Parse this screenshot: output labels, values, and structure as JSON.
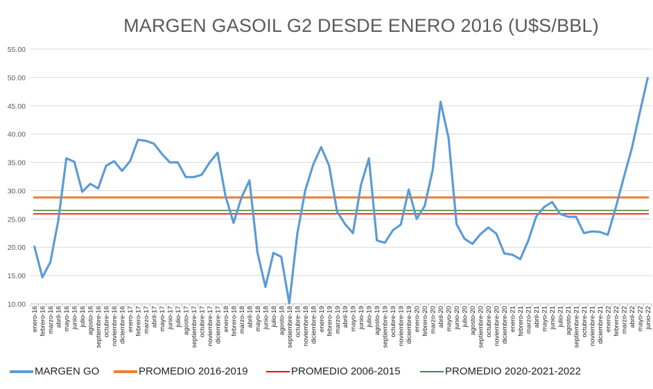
{
  "chart_data": {
    "type": "line",
    "title": "MARGEN GASOIL G2 DESDE ENERO 2016 (U$S/BBL)",
    "xlabel": "",
    "ylabel": "",
    "ylim": [
      10,
      55
    ],
    "yticks": [
      "10.00",
      "15.00",
      "20.00",
      "25.00",
      "30.00",
      "35.00",
      "40.00",
      "45.00",
      "50.00",
      "55.00"
    ],
    "grid": true,
    "legend_position": "bottom",
    "categories": [
      "enero-16",
      "febrero-16",
      "marzo-16",
      "abril-16",
      "mayo-16",
      "junio-16",
      "julio-16",
      "agosto-16",
      "septiembre-16",
      "octubre-16",
      "noviembre-16",
      "diciembre-16",
      "enero-17",
      "febrero-17",
      "marzo-17",
      "abril-17",
      "mayo-17",
      "junio-17",
      "julio-17",
      "agosto-17",
      "septiembre-17",
      "octubre-17",
      "noviembre-17",
      "diciembre-17",
      "enero-18",
      "febrero-18",
      "marzo-18",
      "abril-18",
      "mayo-18",
      "junio-18",
      "julio-18",
      "agosto-18",
      "septiembre-18",
      "octubre-18",
      "noviembre-18",
      "diciembre-18",
      "enero-19",
      "febrero-19",
      "marzo-19",
      "abril-19",
      "mayo-19",
      "junio-19",
      "julio-19",
      "agosto-19",
      "septiembre-19",
      "octubre-19",
      "noviembre-19",
      "diciembre-19",
      "enero-20",
      "febrero-20",
      "marzo-20",
      "abril-20",
      "mayo-20",
      "junio-20",
      "julio-20",
      "agosto-20",
      "septiembre-20",
      "octubre-20",
      "noviembre-20",
      "diciembre-20",
      "enero-21",
      "febrero-21",
      "marzo-21",
      "abril-21",
      "mayo-21",
      "junio-21",
      "julio-21",
      "agosto-21",
      "septiembre-21",
      "octubre-21",
      "noviembre-21",
      "diciembre-21",
      "enero-22",
      "febrero-22",
      "marzo-22",
      "abril-22",
      "mayo-22",
      "junio-22"
    ],
    "series": [
      {
        "name": "MARGEN GO",
        "color": "#5B9BD5",
        "values": [
          20.1,
          14.7,
          17.4,
          24.8,
          35.7,
          35.1,
          29.8,
          31.2,
          30.4,
          34.4,
          35.2,
          33.5,
          35.2,
          39.0,
          38.8,
          38.3,
          36.5,
          35.0,
          35.0,
          32.4,
          32.4,
          32.8,
          35.0,
          36.7,
          29.0,
          24.3,
          28.8,
          31.8,
          19.1,
          13.0,
          19.0,
          18.3,
          10.1,
          22.3,
          30.0,
          34.6,
          37.7,
          34.4,
          26.3,
          24.1,
          22.5,
          31.0,
          35.7,
          21.2,
          20.8,
          23.0,
          24.0,
          30.2,
          25.0,
          27.3,
          33.6,
          45.7,
          39.3,
          24.1,
          21.5,
          20.6,
          22.3,
          23.5,
          22.4,
          18.9,
          18.7,
          17.9,
          21.1,
          25.4,
          27.1,
          28.0,
          25.9,
          25.4,
          25.4,
          22.5,
          22.8,
          22.7,
          22.2,
          27.0,
          32.3,
          37.4,
          43.7,
          49.9
        ]
      },
      {
        "name": "PROMEDIO 2016-2019",
        "color": "#ED7D31",
        "constant": 28.8
      },
      {
        "name": "PROMEDIO 2006-2015",
        "color": "#FF0000",
        "constant": 25.9
      },
      {
        "name": "PROMEDIO 2020-2021-2022",
        "color": "#548235",
        "constant": 26.5
      }
    ]
  }
}
